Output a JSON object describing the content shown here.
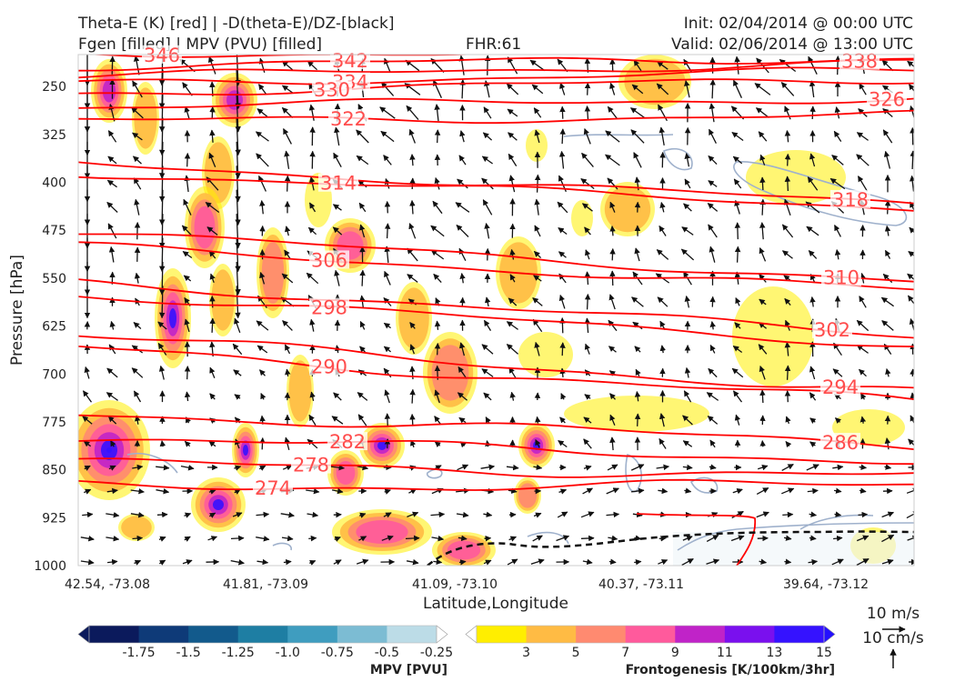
{
  "header": {
    "title_line1": "Theta-E (K) [red] | -D(theta-E)/DZ-[black]",
    "title_line2": "Fgen [filled] | MPV (PVU) [filled]",
    "fhr": "FHR:61",
    "init": "Init: 02/04/2014 @ 00:00 UTC",
    "valid": "Valid: 02/06/2014 @ 13:00 UTC"
  },
  "chart_data": {
    "type": "cross-section",
    "xlabel": "Latitude,Longitude",
    "ylabel": "Pressure [hPa]",
    "x_ticks": [
      "42.54, -73.08",
      "41.81, -73.09",
      "41.09, -73.10",
      "40.37, -73.11",
      "39.64, -73.12"
    ],
    "y_ticks": [
      250,
      325,
      400,
      475,
      550,
      625,
      700,
      775,
      850,
      925,
      1000
    ],
    "ylim": [
      200,
      1000
    ],
    "theta_e_contours": [
      {
        "label": "346",
        "p_left": 198,
        "p_right": 197
      },
      {
        "label": "342",
        "p_left": 218,
        "p_right": 205
      },
      {
        "label": "338",
        "p_left": 235,
        "p_right": 212
      },
      {
        "label": "334",
        "p_left": 246,
        "p_right": 225
      },
      {
        "label": "330",
        "p_left": 260,
        "p_right": 238
      },
      {
        "label": "326",
        "p_left": 282,
        "p_right": 268
      },
      {
        "label": "322",
        "p_left": 305,
        "p_right": 295
      },
      {
        "label": "318",
        "p_left": 370,
        "p_right": 435
      },
      {
        "label": "314",
        "p_left": 385,
        "p_right": 440
      },
      {
        "label": "310",
        "p_left": 478,
        "p_right": 555
      },
      {
        "label": "306",
        "p_left": 500,
        "p_right": 570
      },
      {
        "label": "302",
        "p_left": 555,
        "p_right": 640
      },
      {
        "label": "298",
        "p_left": 575,
        "p_right": 655
      },
      {
        "label": "294",
        "p_left": 640,
        "p_right": 730
      },
      {
        "label": "290",
        "p_left": 660,
        "p_right": 745
      },
      {
        "label": "286",
        "p_left": 760,
        "p_right": 810
      },
      {
        "label": "282",
        "p_left": 800,
        "p_right": 835
      },
      {
        "label": "278",
        "p_left": 840,
        "p_right": 860
      },
      {
        "label": "274",
        "p_left": 875,
        "p_right": 875
      }
    ],
    "mpv_colorbar": {
      "label": "MPV [PVU]",
      "ticks": [
        "-1.75",
        "-1.5",
        "-1.25",
        "-1.0",
        "-0.75",
        "-0.5",
        "-0.25"
      ],
      "colors": [
        "#0b1a5c",
        "#0e3a78",
        "#125a8c",
        "#1e7ea3",
        "#3f9dbf",
        "#7cbcd3",
        "#bcdce7",
        "#ffffff"
      ]
    },
    "fgen_colorbar": {
      "label": "Frontogenesis [K/100km/3hr]",
      "ticks": [
        "3",
        "5",
        "7",
        "9",
        "11",
        "13",
        "15"
      ],
      "colors": [
        "#ffffff",
        "#ffee00",
        "#ffbb44",
        "#ff8a70",
        "#ff5a9c",
        "#c023c8",
        "#7a10ee",
        "#3512ff",
        "#2410ff"
      ]
    },
    "vector_key": {
      "horizontal": "10 m/s",
      "vertical": "10 cm/s"
    }
  }
}
